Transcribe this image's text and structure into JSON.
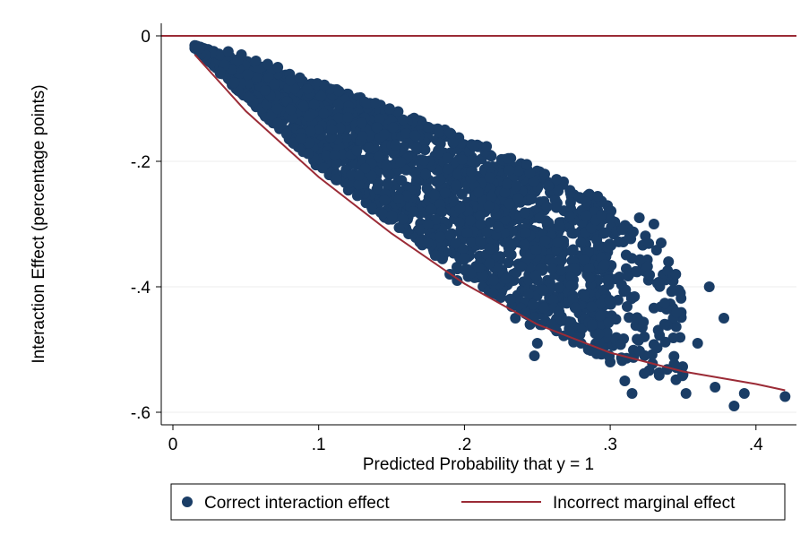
{
  "chart_data": {
    "type": "scatter",
    "title": "",
    "xlabel": "Predicted Probability that y = 1",
    "ylabel": "Interaction Effect (percentage points)",
    "xlim": [
      0,
      0.42
    ],
    "ylim": [
      -0.6,
      0
    ],
    "x_ticks": [
      0,
      0.1,
      0.2,
      0.3,
      0.4
    ],
    "x_tick_labels": [
      "0",
      ".1",
      ".2",
      ".3",
      ".4"
    ],
    "y_ticks": [
      0,
      -0.2,
      -0.4,
      -0.6
    ],
    "y_tick_labels": [
      "0",
      "-.2",
      "-.4",
      "-.6"
    ],
    "grid": true,
    "legend_position": "bottom",
    "series": [
      {
        "name": "Correct interaction effect",
        "kind": "scatter",
        "color": "#1a3d66",
        "upper_envelope": [
          [
            0.015,
            -0.015
          ],
          [
            0.05,
            -0.04
          ],
          [
            0.1,
            -0.075
          ],
          [
            0.15,
            -0.115
          ],
          [
            0.2,
            -0.16
          ],
          [
            0.25,
            -0.21
          ],
          [
            0.3,
            -0.265
          ]
        ],
        "lower_envelope": [
          [
            0.015,
            -0.02
          ],
          [
            0.05,
            -0.1
          ],
          [
            0.1,
            -0.21
          ],
          [
            0.15,
            -0.3
          ],
          [
            0.2,
            -0.38
          ],
          [
            0.25,
            -0.46
          ],
          [
            0.3,
            -0.52
          ],
          [
            0.35,
            -0.56
          ],
          [
            0.385,
            -0.58
          ]
        ],
        "scattered_points": [
          [
            0.018,
            -0.02
          ],
          [
            0.038,
            -0.025
          ],
          [
            0.047,
            -0.03
          ],
          [
            0.057,
            -0.04
          ],
          [
            0.065,
            -0.045
          ],
          [
            0.072,
            -0.05
          ],
          [
            0.12,
            -0.13
          ],
          [
            0.13,
            -0.16
          ],
          [
            0.155,
            -0.26
          ],
          [
            0.165,
            -0.28
          ],
          [
            0.175,
            -0.3
          ],
          [
            0.18,
            -0.35
          ],
          [
            0.19,
            -0.38
          ],
          [
            0.195,
            -0.39
          ],
          [
            0.21,
            -0.37
          ],
          [
            0.22,
            -0.39
          ],
          [
            0.235,
            -0.45
          ],
          [
            0.245,
            -0.46
          ],
          [
            0.25,
            -0.49
          ],
          [
            0.248,
            -0.51
          ],
          [
            0.26,
            -0.46
          ],
          [
            0.265,
            -0.44
          ],
          [
            0.28,
            -0.49
          ],
          [
            0.285,
            -0.5
          ],
          [
            0.3,
            -0.52
          ],
          [
            0.31,
            -0.55
          ],
          [
            0.315,
            -0.57
          ],
          [
            0.32,
            -0.29
          ],
          [
            0.33,
            -0.3
          ],
          [
            0.335,
            -0.33
          ],
          [
            0.34,
            -0.36
          ],
          [
            0.345,
            -0.38
          ],
          [
            0.35,
            -0.54
          ],
          [
            0.352,
            -0.57
          ],
          [
            0.36,
            -0.49
          ],
          [
            0.368,
            -0.4
          ],
          [
            0.372,
            -0.56
          ],
          [
            0.378,
            -0.45
          ],
          [
            0.385,
            -0.59
          ],
          [
            0.392,
            -0.57
          ],
          [
            0.42,
            -0.575
          ]
        ]
      },
      {
        "name": "Incorrect marginal effect",
        "kind": "line",
        "color": "#9b2b36",
        "x": [
          0.015,
          0.05,
          0.1,
          0.15,
          0.2,
          0.25,
          0.3,
          0.35,
          0.4,
          0.42
        ],
        "y": [
          -0.03,
          -0.12,
          -0.225,
          -0.315,
          -0.395,
          -0.46,
          -0.505,
          -0.535,
          -0.555,
          -0.565
        ]
      }
    ],
    "reference_line": {
      "y": 0,
      "color": "#9b2b36"
    }
  }
}
